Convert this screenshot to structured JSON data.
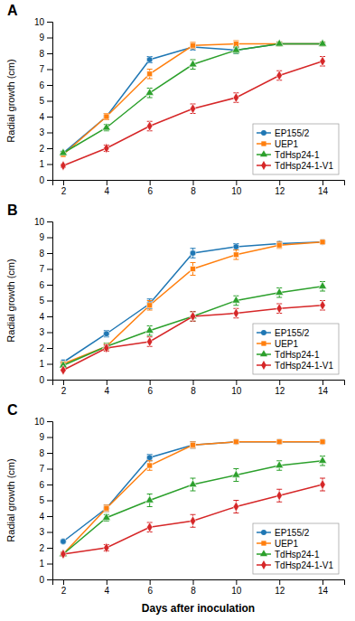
{
  "chart_data": [
    {
      "type": "line",
      "title": "A",
      "ylabel": "Radial growth (cm)",
      "x": [
        2,
        4,
        6,
        8,
        10,
        12,
        14
      ],
      "xlim": [
        1.5,
        15.0
      ],
      "ylim": [
        0,
        10
      ],
      "xticks": [
        2,
        4,
        6,
        8,
        10,
        12,
        14
      ],
      "yticks": [
        0,
        1,
        2,
        3,
        4,
        5,
        6,
        7,
        8,
        9,
        10
      ],
      "grid": false,
      "legend": "lower right",
      "series": [
        {
          "name": "EP155/2",
          "marker": "circle",
          "values": [
            1.7,
            4.0,
            7.6,
            8.4,
            8.2,
            8.6,
            8.6
          ],
          "errors": [
            0.1,
            0.2,
            0.2,
            0.2,
            0.2,
            0.1,
            0.1
          ]
        },
        {
          "name": "UEP1",
          "marker": "square",
          "values": [
            1.6,
            4.0,
            6.7,
            8.5,
            8.6,
            8.6,
            8.6
          ],
          "errors": [
            0.1,
            0.2,
            0.3,
            0.2,
            0.2,
            0.1,
            0.1
          ]
        },
        {
          "name": "TdHsp24-1",
          "marker": "triangle",
          "values": [
            1.7,
            3.3,
            5.5,
            7.3,
            8.2,
            8.6,
            8.6
          ],
          "errors": [
            0.1,
            0.2,
            0.3,
            0.3,
            0.2,
            0.1,
            0.1
          ]
        },
        {
          "name": "TdHsp24-1-V1",
          "marker": "diamond",
          "values": [
            0.9,
            2.0,
            3.4,
            4.5,
            5.2,
            6.6,
            7.5
          ],
          "errors": [
            0.1,
            0.2,
            0.3,
            0.3,
            0.3,
            0.3,
            0.3
          ]
        }
      ]
    },
    {
      "type": "line",
      "title": "B",
      "ylabel": "Radial growth (cm)",
      "x": [
        2,
        4,
        6,
        8,
        10,
        12,
        14
      ],
      "xlim": [
        1.5,
        15.0
      ],
      "ylim": [
        0,
        10
      ],
      "xticks": [
        2,
        4,
        6,
        8,
        10,
        12,
        14
      ],
      "yticks": [
        0,
        1,
        2,
        3,
        4,
        5,
        6,
        7,
        8,
        9,
        10
      ],
      "grid": false,
      "legend": "lower right",
      "series": [
        {
          "name": "EP155/2",
          "marker": "circle",
          "values": [
            1.1,
            2.9,
            4.8,
            8.0,
            8.4,
            8.6,
            8.7
          ],
          "errors": [
            0.05,
            0.2,
            0.3,
            0.3,
            0.2,
            0.1,
            0.1
          ]
        },
        {
          "name": "UEP1",
          "marker": "square",
          "values": [
            1.0,
            2.1,
            4.7,
            7.0,
            7.9,
            8.5,
            8.7
          ],
          "errors": [
            0.05,
            0.2,
            0.3,
            0.4,
            0.3,
            0.2,
            0.1
          ]
        },
        {
          "name": "TdHsp24-1",
          "marker": "triangle",
          "values": [
            0.9,
            2.1,
            3.1,
            4.0,
            5.0,
            5.5,
            5.9
          ],
          "errors": [
            0.05,
            0.2,
            0.3,
            0.3,
            0.3,
            0.3,
            0.3
          ]
        },
        {
          "name": "TdHsp24-1-V1",
          "marker": "diamond",
          "values": [
            0.6,
            2.0,
            2.4,
            4.0,
            4.2,
            4.5,
            4.7
          ],
          "errors": [
            0.05,
            0.2,
            0.3,
            0.3,
            0.3,
            0.3,
            0.3
          ]
        }
      ]
    },
    {
      "type": "line",
      "title": "C",
      "ylabel": "Radial growth (cm)",
      "xlabel": "Days after inoculation",
      "x": [
        2,
        4,
        6,
        8,
        10,
        12,
        14
      ],
      "xlim": [
        1.5,
        15.0
      ],
      "ylim": [
        0,
        10
      ],
      "xticks": [
        2,
        4,
        6,
        8,
        10,
        12,
        14
      ],
      "yticks": [
        0,
        1,
        2,
        3,
        4,
        5,
        6,
        7,
        8,
        9,
        10
      ],
      "grid": false,
      "legend": "lower right",
      "series": [
        {
          "name": "EP155/2",
          "marker": "circle",
          "values": [
            2.4,
            4.5,
            7.7,
            8.5,
            8.7,
            8.7,
            8.7
          ],
          "errors": [
            0.1,
            0.2,
            0.2,
            0.2,
            0.1,
            0.1,
            0.1
          ]
        },
        {
          "name": "UEP1",
          "marker": "square",
          "values": [
            1.6,
            4.5,
            7.2,
            8.5,
            8.7,
            8.7,
            8.7
          ],
          "errors": [
            0.1,
            0.2,
            0.3,
            0.2,
            0.1,
            0.1,
            0.1
          ]
        },
        {
          "name": "TdHsp24-1",
          "marker": "triangle",
          "values": [
            1.6,
            3.9,
            5.0,
            6.0,
            6.6,
            7.2,
            7.5
          ],
          "errors": [
            0.1,
            0.2,
            0.4,
            0.4,
            0.4,
            0.3,
            0.3
          ]
        },
        {
          "name": "TdHsp24-1-V1",
          "marker": "diamond",
          "values": [
            1.6,
            2.0,
            3.3,
            3.7,
            4.6,
            5.3,
            6.0
          ],
          "errors": [
            0.1,
            0.2,
            0.3,
            0.4,
            0.4,
            0.4,
            0.4
          ]
        }
      ]
    }
  ]
}
